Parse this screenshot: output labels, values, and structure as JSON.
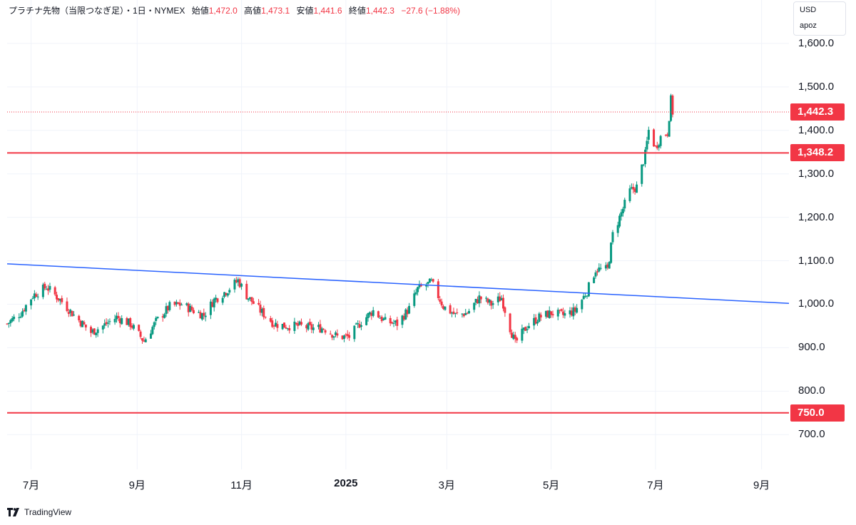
{
  "header": {
    "instrument": "プラチナ先物（当限つなぎ足）・1日・NYMEX",
    "open_label": "始値",
    "open": "1,472.0",
    "high_label": "高値",
    "high": "1,473.1",
    "low_label": "安値",
    "low": "1,441.6",
    "close_label": "終値",
    "close": "1,442.3",
    "change": "−27.6 (−1.88%)"
  },
  "unit_box": {
    "currency": "USD",
    "user": "apoz"
  },
  "colors": {
    "up": "#089981",
    "down": "#f23645",
    "trendline": "#2962ff",
    "level": "#f23645"
  },
  "footer": {
    "brand": "TradingView",
    "brand_icon": "tradingview-logo-icon"
  },
  "chart_data": {
    "type": "candlestick",
    "ylim": [
      620,
      1700
    ],
    "y_ticks": [
      700,
      800,
      900,
      1000,
      1100,
      1200,
      1300,
      1400,
      1500,
      1600
    ],
    "y_tick_labels": [
      "700.0",
      "800.0",
      "900.0",
      "1,000.0",
      "1,100.0",
      "1,200.0",
      "1,300.0",
      "1,400.0",
      "1,500.0",
      "1,600.0"
    ],
    "x_ticks": [
      {
        "label": "7月",
        "date": "2024-07-01",
        "bold": false
      },
      {
        "label": "9月",
        "date": "2024-09-01",
        "bold": false
      },
      {
        "label": "11月",
        "date": "2024-11-01",
        "bold": false
      },
      {
        "label": "2025",
        "date": "2025-01-01",
        "bold": true
      },
      {
        "label": "3月",
        "date": "2025-03-01",
        "bold": false
      },
      {
        "label": "5月",
        "date": "2025-05-01",
        "bold": false
      },
      {
        "label": "7月",
        "date": "2025-07-01",
        "bold": false
      },
      {
        "label": "9月",
        "date": "2025-09-01",
        "bold": false
      }
    ],
    "x_range": [
      "2024-06-17",
      "2025-09-17"
    ],
    "last_price": {
      "value": 1442.3,
      "label": "1,442.3"
    },
    "horizontal_levels": [
      {
        "value": 1348.2,
        "label": "1,348.2"
      },
      {
        "value": 750.0,
        "label": "750.0"
      }
    ],
    "trendline": {
      "start": {
        "date": "2024-06-17",
        "value": 1093
      },
      "end": {
        "date": "2025-09-17",
        "value": 1002
      }
    },
    "close_path": [
      [
        "2024-06-17",
        955
      ],
      [
        "2024-06-25",
        980
      ],
      [
        "2024-07-02",
        1020
      ],
      [
        "2024-07-10",
        1040
      ],
      [
        "2024-07-18",
        1010
      ],
      [
        "2024-07-26",
        975
      ],
      [
        "2024-08-05",
        935
      ],
      [
        "2024-08-12",
        950
      ],
      [
        "2024-08-20",
        970
      ],
      [
        "2024-08-28",
        955
      ],
      [
        "2024-09-05",
        915
      ],
      [
        "2024-09-12",
        960
      ],
      [
        "2024-09-20",
        995
      ],
      [
        "2024-09-27",
        1000
      ],
      [
        "2024-10-04",
        985
      ],
      [
        "2024-10-10",
        975
      ],
      [
        "2024-10-16",
        1010
      ],
      [
        "2024-10-23",
        1030
      ],
      [
        "2024-10-30",
        1055
      ],
      [
        "2024-11-04",
        1020
      ],
      [
        "2024-11-12",
        985
      ],
      [
        "2024-11-20",
        955
      ],
      [
        "2024-11-27",
        950
      ],
      [
        "2024-12-05",
        950
      ],
      [
        "2024-12-12",
        945
      ],
      [
        "2024-12-19",
        945
      ],
      [
        "2024-12-27",
        925
      ],
      [
        "2025-01-03",
        925
      ],
      [
        "2025-01-10",
        960
      ],
      [
        "2025-01-17",
        985
      ],
      [
        "2025-01-24",
        960
      ],
      [
        "2025-01-31",
        955
      ],
      [
        "2025-02-07",
        990
      ],
      [
        "2025-02-12",
        1035
      ],
      [
        "2025-02-20",
        1050
      ],
      [
        "2025-02-27",
        995
      ],
      [
        "2025-03-06",
        975
      ],
      [
        "2025-03-13",
        980
      ],
      [
        "2025-03-20",
        1015
      ],
      [
        "2025-03-27",
        1000
      ],
      [
        "2025-04-02",
        1015
      ],
      [
        "2025-04-07",
        945
      ],
      [
        "2025-04-10",
        910
      ],
      [
        "2025-04-17",
        950
      ],
      [
        "2025-04-24",
        970
      ],
      [
        "2025-05-01",
        980
      ],
      [
        "2025-05-08",
        975
      ],
      [
        "2025-05-15",
        985
      ],
      [
        "2025-05-22",
        1030
      ],
      [
        "2025-05-27",
        1080
      ],
      [
        "2025-06-03",
        1080
      ],
      [
        "2025-06-06",
        1160
      ],
      [
        "2025-06-10",
        1200
      ],
      [
        "2025-06-16",
        1260
      ],
      [
        "2025-06-20",
        1270
      ],
      [
        "2025-06-25",
        1345
      ],
      [
        "2025-06-27",
        1400
      ],
      [
        "2025-07-01",
        1360
      ],
      [
        "2025-07-04",
        1385
      ],
      [
        "2025-07-08",
        1395
      ],
      [
        "2025-07-10",
        1470
      ],
      [
        "2025-07-11",
        1442
      ]
    ]
  }
}
